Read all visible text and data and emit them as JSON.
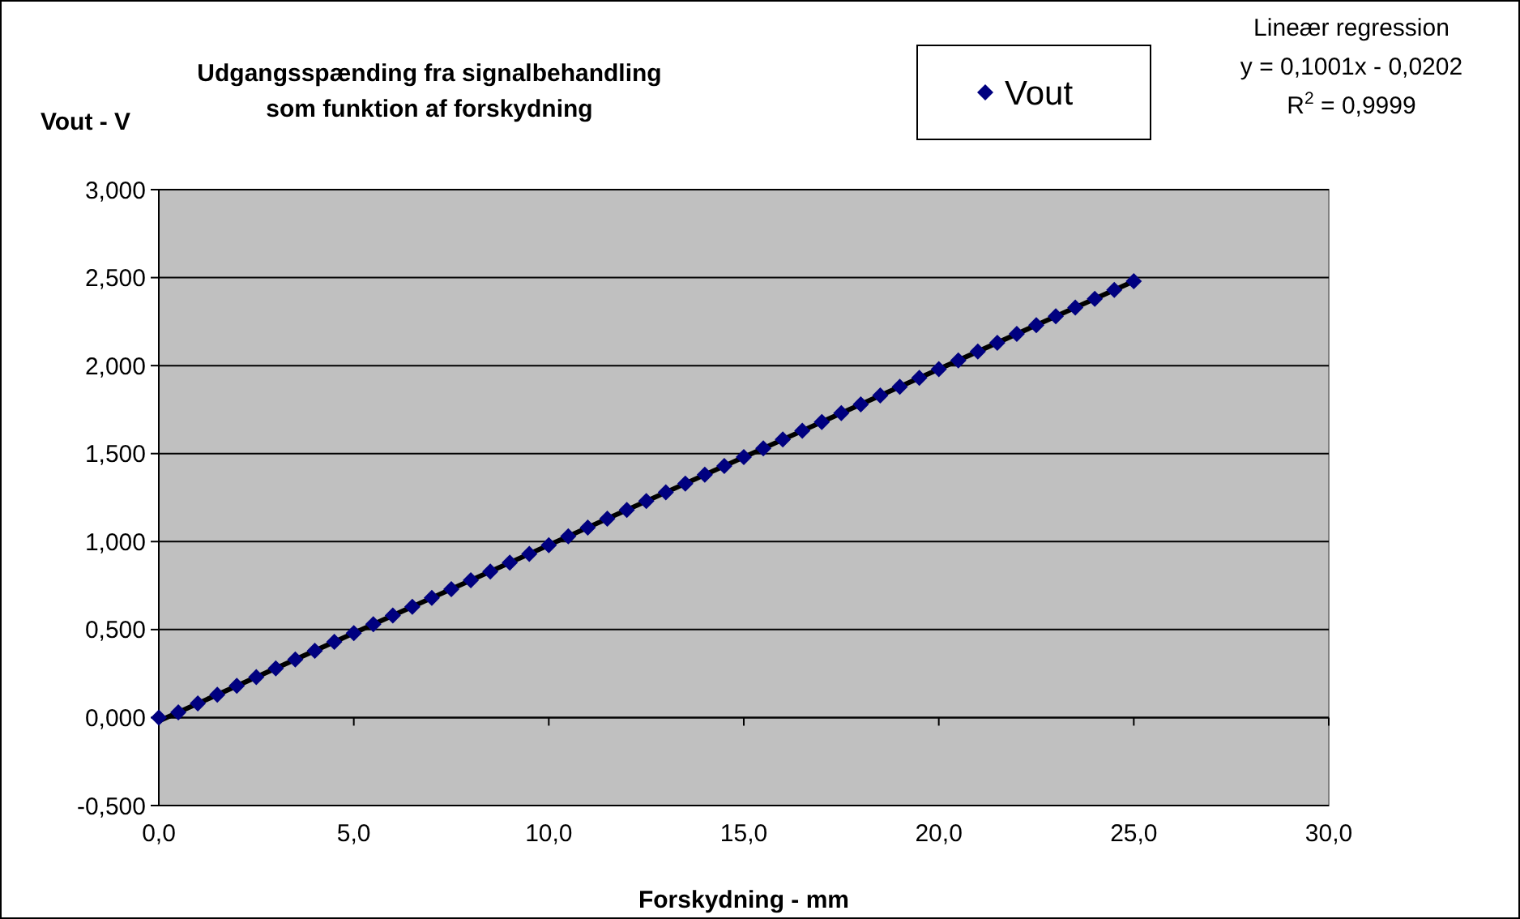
{
  "chart_data": {
    "type": "scatter",
    "title": "Udgangsspænding fra signalbehandling som funktion af forskydning",
    "xlabel": "Forskydning - mm",
    "ylabel": "Vout - V",
    "annotations": [
      "Lineær regression",
      "y = 0,1001x - 0,0202",
      "R$^{2}$ = 0,9999"
    ],
    "x": [
      0,
      0.5,
      1,
      1.5,
      2,
      2.5,
      3,
      3.5,
      4,
      4.5,
      5,
      5.5,
      6,
      6.5,
      7,
      7.5,
      8,
      8.5,
      9,
      9.5,
      10,
      10.5,
      11,
      11.5,
      12,
      12.5,
      13,
      13.5,
      14,
      14.5,
      15,
      15.5,
      16,
      16.5,
      17,
      17.5,
      18,
      18.5,
      19,
      19.5,
      20,
      20.5,
      21,
      21.5,
      22,
      22.5,
      23,
      23.5,
      24,
      24.5,
      25
    ],
    "series": [
      {
        "name": "Vout",
        "color": "#000080",
        "marker": "diamond",
        "values": [
          0,
          0.03,
          0.08,
          0.13,
          0.18,
          0.23,
          0.28,
          0.33,
          0.38,
          0.43,
          0.48,
          0.53,
          0.58,
          0.63,
          0.68,
          0.73,
          0.78,
          0.83,
          0.88,
          0.93,
          0.98,
          1.03,
          1.08,
          1.13,
          1.18,
          1.23,
          1.28,
          1.33,
          1.38,
          1.43,
          1.48,
          1.53,
          1.58,
          1.63,
          1.68,
          1.73,
          1.78,
          1.83,
          1.88,
          1.93,
          1.98,
          2.03,
          2.08,
          2.13,
          2.18,
          2.23,
          2.28,
          2.33,
          2.38,
          2.43,
          2.48
        ]
      },
      {
        "type": "line",
        "color": "#000000",
        "marker": "none",
        "line_style": "solid",
        "x": [
          0,
          25
        ],
        "values": [
          -0.02,
          2.48
        ]
      }
    ],
    "xlim": [
      0,
      30
    ],
    "xticks": [
      {
        "value": 0,
        "label": "0,0"
      },
      {
        "value": 5,
        "label": "5,0"
      },
      {
        "value": 10,
        "label": "10,0"
      },
      {
        "value": 15,
        "label": "15,0"
      },
      {
        "value": 20,
        "label": "20,0"
      },
      {
        "value": 25,
        "label": "25,0"
      },
      {
        "value": 30,
        "label": "30,0"
      }
    ],
    "ylim": [
      -0.5,
      3
    ],
    "yticks": [
      {
        "value": -0.5,
        "label": "-0,500"
      },
      {
        "value": 0,
        "label": "0,000"
      },
      {
        "value": 0.5,
        "label": "0,500"
      },
      {
        "value": 1,
        "label": "1,000"
      },
      {
        "value": 1.5,
        "label": "1,500"
      },
      {
        "value": 2,
        "label": "2,000"
      },
      {
        "value": 2.5,
        "label": "2,500"
      },
      {
        "value": 3,
        "label": "3,000"
      }
    ],
    "grid": "y",
    "legend": "top right"
  }
}
